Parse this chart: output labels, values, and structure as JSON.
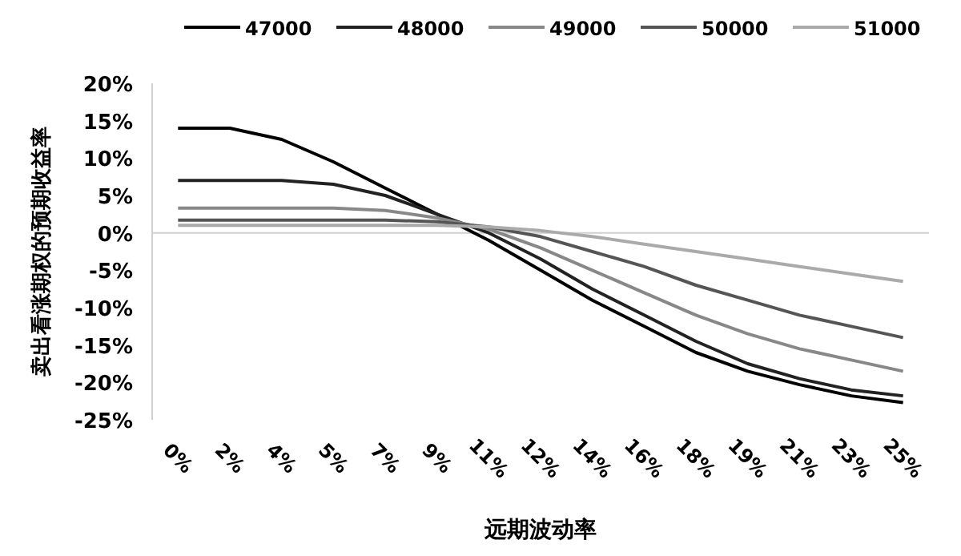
{
  "chart_data": {
    "type": "line",
    "xlabel": "远期波动率",
    "ylabel": "卖出看涨期权的预期收益率",
    "categories": [
      "0%",
      "2%",
      "4%",
      "5%",
      "7%",
      "9%",
      "11%",
      "12%",
      "14%",
      "16%",
      "18%",
      "19%",
      "21%",
      "23%",
      "25%"
    ],
    "series": [
      {
        "name": "47000",
        "color": "#000000",
        "values": [
          14,
          14,
          12.5,
          9.5,
          6,
          2.5,
          -1,
          -5,
          -9,
          -12.5,
          -16,
          -18.5,
          -20.3,
          -21.8,
          -22.7
        ]
      },
      {
        "name": "48000",
        "color": "#222222",
        "values": [
          7,
          7,
          7,
          6.5,
          5,
          2.5,
          0,
          -3.5,
          -7.5,
          -11,
          -14.5,
          -17.5,
          -19.5,
          -21,
          -21.8
        ]
      },
      {
        "name": "49000",
        "color": "#888888",
        "values": [
          3.3,
          3.3,
          3.3,
          3.3,
          3,
          2,
          0.5,
          -2,
          -5,
          -8,
          -11,
          -13.5,
          -15.5,
          -17,
          -18.5
        ]
      },
      {
        "name": "50000",
        "color": "#555555",
        "values": [
          1.7,
          1.7,
          1.7,
          1.7,
          1.7,
          1.5,
          0.8,
          -0.5,
          -2.5,
          -4.5,
          -7,
          -9,
          -11,
          -12.5,
          -14
        ]
      },
      {
        "name": "51000",
        "color": "#aaaaaa",
        "values": [
          1,
          1,
          1,
          1,
          1,
          1,
          0.8,
          0.3,
          -0.5,
          -1.5,
          -2.5,
          -3.5,
          -4.5,
          -5.5,
          -6.5
        ]
      }
    ],
    "ylim": [
      -25,
      20
    ],
    "yticks": [
      {
        "value": -25,
        "label": "-25%"
      },
      {
        "value": -20,
        "label": "-20%"
      },
      {
        "value": -15,
        "label": "-15%"
      },
      {
        "value": -10,
        "label": "-10%"
      },
      {
        "value": -5,
        "label": "-5%"
      },
      {
        "value": 0,
        "label": "0%"
      },
      {
        "value": 5,
        "label": "5%"
      },
      {
        "value": 10,
        "label": "10%"
      },
      {
        "value": 15,
        "label": "15%"
      },
      {
        "value": 20,
        "label": "20%"
      }
    ],
    "legend": "top",
    "marker": "none",
    "line_style": "solid"
  }
}
